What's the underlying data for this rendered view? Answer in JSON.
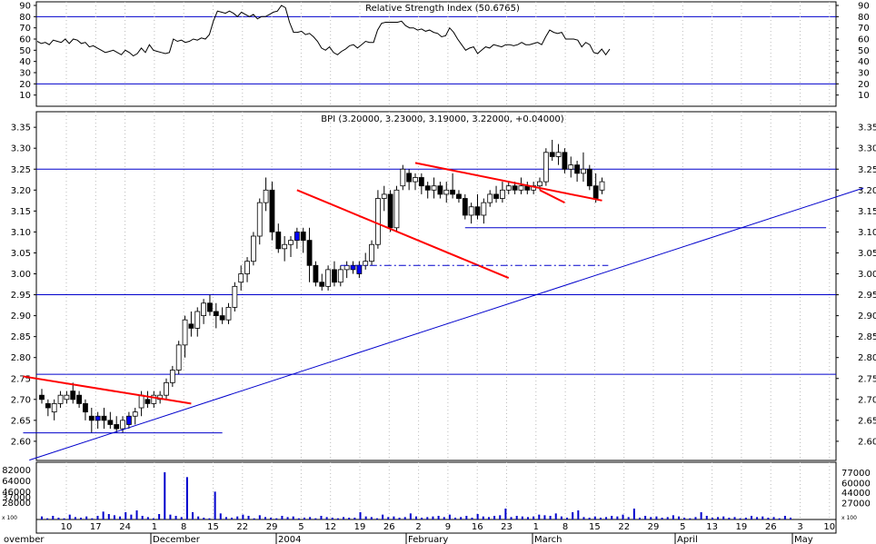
{
  "chart_data": [
    {
      "type": "line",
      "title": "Relative Strength Index (50.6765)",
      "ylim": [
        0,
        90
      ],
      "y_ticks": [
        10,
        20,
        30,
        40,
        50,
        60,
        70,
        80,
        90
      ],
      "reference_lines": [
        80,
        20
      ],
      "line_color": "#000000",
      "series": [
        {
          "values": [
            58,
            56,
            57,
            55,
            59,
            58,
            57,
            60,
            56,
            60,
            59,
            56,
            57,
            53,
            54,
            52,
            50,
            48,
            49,
            50,
            48,
            46,
            50,
            48,
            45,
            47,
            52,
            48,
            55,
            50,
            49,
            48,
            47,
            48,
            60,
            58,
            59,
            57,
            58,
            60,
            59,
            61,
            60,
            64,
            76,
            85,
            84,
            83,
            85,
            83,
            80,
            84,
            82,
            80,
            82,
            78,
            80,
            80,
            82,
            84,
            85,
            90,
            88,
            75,
            66,
            66,
            67,
            64,
            65,
            62,
            58,
            52,
            50,
            53,
            48,
            46,
            49,
            51,
            54,
            55,
            52,
            55,
            58,
            57,
            57,
            68,
            74,
            75,
            75,
            75,
            75,
            76,
            72,
            70,
            70,
            68,
            69,
            67,
            68,
            66,
            65,
            62,
            63,
            70,
            66,
            60,
            55,
            50,
            52,
            53,
            47,
            50,
            53,
            52,
            55,
            54,
            53,
            55,
            55,
            54,
            55,
            57,
            55,
            55,
            56,
            57,
            55,
            62,
            68,
            66,
            65,
            66,
            60,
            60,
            60,
            59,
            53,
            57,
            55,
            48,
            47,
            51,
            46,
            51
          ]
        }
      ]
    },
    {
      "type": "candlestick",
      "title": "BPI (3.20000, 3.23000, 3.19000, 3.22000, +0.04000)",
      "ylim": [
        2.555,
        3.375
      ],
      "y_ticks": [
        "2.60",
        "2.65",
        "2.70",
        "2.75",
        "2.80",
        "2.85",
        "2.90",
        "2.95",
        "3.00",
        "3.05",
        "3.10",
        "3.15",
        "3.20",
        "3.25",
        "3.30",
        "3.35"
      ],
      "horizontal_lines": [
        3.25,
        2.95,
        2.76
      ],
      "colors": {
        "up": "#ffffff",
        "down": "#000000",
        "highlight": "#0000ff",
        "trendline": "#ff0000",
        "support": "#0000cc"
      },
      "x_date_labels": [
        "10",
        "17",
        "24",
        "1",
        "8",
        "15",
        "22",
        "29",
        "5",
        "12",
        "19",
        "26",
        "2",
        "9",
        "16",
        "23",
        "1",
        "8",
        "15",
        "22",
        "29",
        "5",
        "13",
        "19",
        "26",
        "3",
        "10"
      ],
      "x_month_labels": [
        "ovember",
        "December",
        "2004",
        "February",
        "March",
        "April",
        "May"
      ],
      "ohlc": [
        [
          2.71,
          2.725,
          2.69,
          2.7
        ],
        [
          2.69,
          2.7,
          2.66,
          2.68
        ],
        [
          2.67,
          2.7,
          2.65,
          2.69
        ],
        [
          2.69,
          2.72,
          2.68,
          2.71
        ],
        [
          2.7,
          2.72,
          2.69,
          2.71
        ],
        [
          2.72,
          2.74,
          2.69,
          2.7
        ],
        [
          2.71,
          2.72,
          2.68,
          2.69
        ],
        [
          2.69,
          2.7,
          2.65,
          2.67
        ],
        [
          2.66,
          2.68,
          2.62,
          2.65
        ],
        [
          2.65,
          2.67,
          2.63,
          2.66
        ],
        [
          2.66,
          2.68,
          2.63,
          2.65
        ],
        [
          2.65,
          2.67,
          2.63,
          2.64
        ],
        [
          2.64,
          2.66,
          2.62,
          2.63
        ],
        [
          2.63,
          2.66,
          2.62,
          2.65
        ],
        [
          2.64,
          2.67,
          2.63,
          2.66
        ],
        [
          2.66,
          2.68,
          2.64,
          2.67
        ],
        [
          2.68,
          2.72,
          2.66,
          2.71
        ],
        [
          2.7,
          2.72,
          2.68,
          2.69
        ],
        [
          2.69,
          2.72,
          2.68,
          2.71
        ],
        [
          2.7,
          2.72,
          2.69,
          2.71
        ],
        [
          2.71,
          2.75,
          2.7,
          2.74
        ],
        [
          2.74,
          2.78,
          2.73,
          2.77
        ],
        [
          2.77,
          2.84,
          2.76,
          2.83
        ],
        [
          2.83,
          2.9,
          2.8,
          2.89
        ],
        [
          2.88,
          2.91,
          2.85,
          2.87
        ],
        [
          2.87,
          2.92,
          2.85,
          2.91
        ],
        [
          2.9,
          2.94,
          2.88,
          2.93
        ],
        [
          2.93,
          2.95,
          2.9,
          2.91
        ],
        [
          2.91,
          2.93,
          2.87,
          2.9
        ],
        [
          2.9,
          2.92,
          2.88,
          2.89
        ],
        [
          2.89,
          2.93,
          2.88,
          2.92
        ],
        [
          2.92,
          2.98,
          2.91,
          2.97
        ],
        [
          2.98,
          3.02,
          2.96,
          3.0
        ],
        [
          3.0,
          3.04,
          2.98,
          3.03
        ],
        [
          3.03,
          3.1,
          3.02,
          3.09
        ],
        [
          3.09,
          3.18,
          3.07,
          3.17
        ],
        [
          3.17,
          3.23,
          3.15,
          3.2
        ],
        [
          3.2,
          3.22,
          3.08,
          3.1
        ],
        [
          3.1,
          3.12,
          3.05,
          3.06
        ],
        [
          3.06,
          3.09,
          3.03,
          3.07
        ],
        [
          3.07,
          3.09,
          3.04,
          3.08
        ],
        [
          3.08,
          3.11,
          3.06,
          3.1
        ],
        [
          3.1,
          3.11,
          3.05,
          3.08
        ],
        [
          3.08,
          3.11,
          2.98,
          3.02
        ],
        [
          3.02,
          3.03,
          2.97,
          2.98
        ],
        [
          2.98,
          3.0,
          2.96,
          2.97
        ],
        [
          2.97,
          3.02,
          2.96,
          3.01
        ],
        [
          3.01,
          3.03,
          2.97,
          2.98
        ],
        [
          2.98,
          3.02,
          2.97,
          3.01
        ],
        [
          3.01,
          3.03,
          2.99,
          3.02
        ],
        [
          3.02,
          3.03,
          3.0,
          3.01
        ],
        [
          3.0,
          3.03,
          2.99,
          3.02
        ],
        [
          3.02,
          3.05,
          3.01,
          3.03
        ],
        [
          3.03,
          3.08,
          3.02,
          3.07
        ],
        [
          3.07,
          3.2,
          3.06,
          3.18
        ],
        [
          3.18,
          3.21,
          3.15,
          3.19
        ],
        [
          3.19,
          3.2,
          3.1,
          3.11
        ],
        [
          3.11,
          3.21,
          3.1,
          3.2
        ],
        [
          3.21,
          3.26,
          3.2,
          3.25
        ],
        [
          3.24,
          3.25,
          3.2,
          3.22
        ],
        [
          3.22,
          3.24,
          3.2,
          3.23
        ],
        [
          3.23,
          3.24,
          3.19,
          3.21
        ],
        [
          3.21,
          3.22,
          3.18,
          3.2
        ],
        [
          3.2,
          3.23,
          3.18,
          3.21
        ],
        [
          3.21,
          3.22,
          3.18,
          3.19
        ],
        [
          3.19,
          3.22,
          3.17,
          3.2
        ],
        [
          3.2,
          3.24,
          3.18,
          3.19
        ],
        [
          3.19,
          3.2,
          3.17,
          3.18
        ],
        [
          3.18,
          3.19,
          3.13,
          3.14
        ],
        [
          3.14,
          3.17,
          3.12,
          3.16
        ],
        [
          3.16,
          3.19,
          3.13,
          3.14
        ],
        [
          3.14,
          3.18,
          3.12,
          3.17
        ],
        [
          3.17,
          3.2,
          3.16,
          3.19
        ],
        [
          3.19,
          3.21,
          3.17,
          3.18
        ],
        [
          3.18,
          3.22,
          3.17,
          3.2
        ],
        [
          3.2,
          3.22,
          3.19,
          3.21
        ],
        [
          3.21,
          3.22,
          3.19,
          3.2
        ],
        [
          3.2,
          3.23,
          3.19,
          3.21
        ],
        [
          3.21,
          3.22,
          3.19,
          3.2
        ],
        [
          3.2,
          3.22,
          3.19,
          3.21
        ],
        [
          3.21,
          3.23,
          3.2,
          3.22
        ],
        [
          3.22,
          3.3,
          3.21,
          3.29
        ],
        [
          3.29,
          3.32,
          3.27,
          3.28
        ],
        [
          3.28,
          3.31,
          3.26,
          3.29
        ],
        [
          3.29,
          3.3,
          3.24,
          3.25
        ],
        [
          3.25,
          3.28,
          3.23,
          3.26
        ],
        [
          3.26,
          3.27,
          3.22,
          3.24
        ],
        [
          3.24,
          3.29,
          3.22,
          3.25
        ],
        [
          3.25,
          3.26,
          3.2,
          3.21
        ],
        [
          3.21,
          3.24,
          3.17,
          3.18
        ],
        [
          3.2,
          3.23,
          3.19,
          3.22
        ]
      ],
      "highlight_indices": [
        9,
        14,
        41,
        50,
        51
      ],
      "trendlines": [
        {
          "color": "red",
          "points": [
            [
              -3,
              2.755
            ],
            [
              24,
              2.69
            ]
          ]
        },
        {
          "color": "red",
          "points": [
            [
              41,
              3.2
            ],
            [
              75,
              2.99
            ]
          ]
        },
        {
          "color": "red",
          "points": [
            [
              60,
              3.265
            ],
            [
              90,
              3.175
            ]
          ]
        },
        {
          "color": "red",
          "points": [
            [
              80,
              3.2
            ],
            [
              84,
              3.17
            ]
          ]
        },
        {
          "color": "blue",
          "points": [
            [
              -2,
              2.555
            ],
            [
              132,
              3.205
            ]
          ]
        }
      ],
      "support_lines": [
        {
          "style": "solid",
          "y": 2.62,
          "from": -3,
          "to": 29
        },
        {
          "style": "dashdot",
          "y": 3.02,
          "from": 48,
          "to": 91
        },
        {
          "style": "solid",
          "y": 3.11,
          "from": 68,
          "to": 126
        }
      ]
    },
    {
      "type": "bar",
      "title": "",
      "ylim": [
        0,
        90000
      ],
      "y_ticks_left": [
        "28000",
        "37000",
        "46000",
        "64000",
        "82000"
      ],
      "y_ticks_right": [
        "27000",
        "44000",
        "60000",
        "77000"
      ],
      "y_unit_note": "x 100",
      "values": [
        5000,
        2000,
        6000,
        3000,
        2000,
        8000,
        4000,
        3000,
        5000,
        2000,
        6000,
        13000,
        9000,
        7000,
        5000,
        12000,
        8000,
        15000,
        6000,
        4000,
        2000,
        9000,
        78000,
        8000,
        6000,
        4000,
        70000,
        12000,
        5000,
        3000,
        2000,
        46000,
        10000,
        4000,
        3000,
        5000,
        8000,
        6000,
        2000,
        7000,
        4000,
        3000,
        2000,
        6000,
        4000,
        5000,
        2000,
        3000,
        4000,
        2000,
        6000,
        4000,
        3000,
        2000,
        4000,
        3000,
        3000,
        12000,
        5000,
        4000,
        2000,
        8000,
        4000,
        5000,
        3000,
        4000,
        10000,
        5000,
        3000,
        4000,
        5000,
        6000,
        4000,
        8000,
        3000,
        4000,
        6000,
        3000,
        9000,
        5000,
        4000,
        6000,
        7000,
        18000,
        4000,
        6000,
        5000,
        4000,
        5000,
        8000,
        7000,
        6000,
        10000,
        5000,
        3000,
        12000,
        15000,
        4000,
        3000,
        5000,
        3000,
        4000,
        6000,
        5000,
        8000,
        4000,
        18000,
        3000,
        6000,
        4000,
        5000,
        3000,
        4000,
        7000,
        5000,
        3000,
        2000,
        4000,
        12000,
        6000,
        3000,
        4000,
        5000,
        3000,
        4000,
        2000,
        3000,
        6000,
        4000,
        5000,
        3000,
        4000,
        2000,
        6000,
        3000
      ]
    }
  ]
}
